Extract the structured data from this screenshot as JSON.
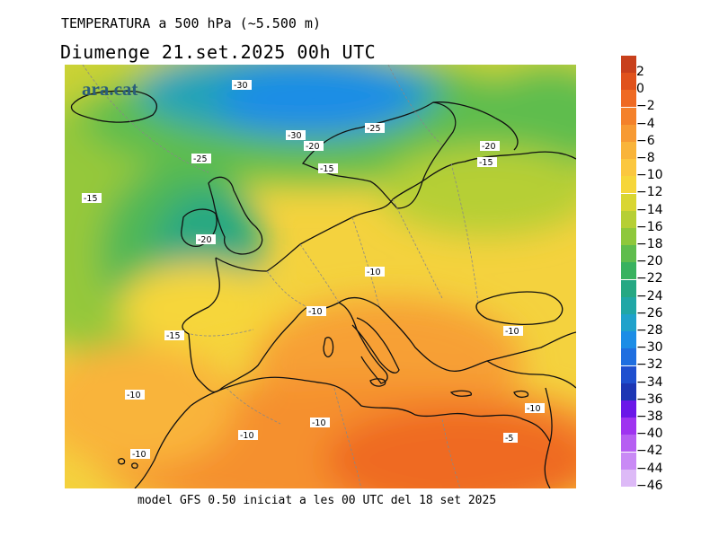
{
  "header": {
    "title": "TEMPERATURA a 500 hPa (~5.500 m)",
    "subtitle": "Diumenge  21.set.2025 00h UTC"
  },
  "footer": {
    "text": "model GFS 0.50 iniciat a les 00 UTC del 18 set 2025"
  },
  "map": {
    "logo": "ara.cat",
    "variable": "temperature at 500 hPa",
    "units": "°C",
    "contour_labels": [
      "-30",
      "-30",
      "-20",
      "-25",
      "-25",
      "-15",
      "-20",
      "-15",
      "-15",
      "-20",
      "-10",
      "-10",
      "-15",
      "-10",
      "-10",
      "-10",
      "-10",
      "-10",
      "-5",
      "-10"
    ]
  },
  "legend": {
    "entries": [
      {
        "label": "2",
        "color": "#c8401c"
      },
      {
        "label": "0",
        "color": "#e0521c"
      },
      {
        "label": "−2",
        "color": "#ef6a22"
      },
      {
        "label": "−4",
        "color": "#f4812a"
      },
      {
        "label": "−6",
        "color": "#f79a33"
      },
      {
        "label": "−8",
        "color": "#f9b43a"
      },
      {
        "label": "−10",
        "color": "#fbc73f"
      },
      {
        "label": "−12",
        "color": "#f6d63a"
      },
      {
        "label": "−14",
        "color": "#d9d632"
      },
      {
        "label": "−16",
        "color": "#b6cf34"
      },
      {
        "label": "−18",
        "color": "#8ec83b"
      },
      {
        "label": "−20",
        "color": "#5fbd4d"
      },
      {
        "label": "−22",
        "color": "#38b25f"
      },
      {
        "label": "−24",
        "color": "#25a883"
      },
      {
        "label": "−26",
        "color": "#20a7a6"
      },
      {
        "label": "−28",
        "color": "#1fa2cb"
      },
      {
        "label": "−30",
        "color": "#1c8de6"
      },
      {
        "label": "−32",
        "color": "#1f6ee0"
      },
      {
        "label": "−34",
        "color": "#1f4fcf"
      },
      {
        "label": "−36",
        "color": "#1d36b4"
      },
      {
        "label": "−38",
        "color": "#6b17e8"
      },
      {
        "label": "−40",
        "color": "#9f34f0"
      },
      {
        "label": "−42",
        "color": "#b65ff2"
      },
      {
        "label": "−44",
        "color": "#c98af5"
      },
      {
        "label": "−46",
        "color": "#ddbaf7"
      }
    ]
  }
}
